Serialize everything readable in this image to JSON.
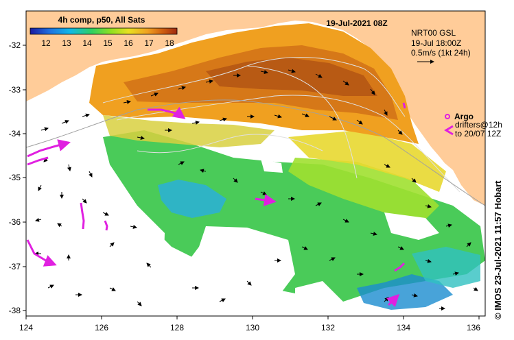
{
  "title": "19-Jul-2021 08Z",
  "colorbar": {
    "label": "4h comp, p50, All Sats",
    "ticks": [
      "12",
      "13",
      "14",
      "15",
      "16",
      "17",
      "18"
    ],
    "stops": [
      "#1a1aa0",
      "#1f6fe0",
      "#10b8e8",
      "#30d060",
      "#90e020",
      "#e8e020",
      "#f0a020",
      "#d06010",
      "#a02a10"
    ]
  },
  "currents": {
    "source": "NRT00 GSL",
    "time": "19-Jul 18:00Z",
    "scale": "0.5m/s (1kt 24h)"
  },
  "legend": {
    "argo_label": "Argo",
    "drifters_line1": "drifters@12h",
    "drifters_line2": "to 20/07 12Z",
    "argo_color": "#e020e0"
  },
  "credit": "© IMOS 23-Jul-2021 11:57 Hobart",
  "axes": {
    "x_ticks": [
      "124",
      "126",
      "128",
      "130",
      "132",
      "134",
      "136"
    ],
    "y_ticks": [
      "-32",
      "-33",
      "-34",
      "-35",
      "-36",
      "-37",
      "-38"
    ],
    "lon_range": [
      124,
      136.6
    ],
    "lat_range": [
      -38.2,
      -31.3
    ]
  },
  "colors": {
    "land": "#ffcc99",
    "sea_missing": "#ffffff"
  }
}
